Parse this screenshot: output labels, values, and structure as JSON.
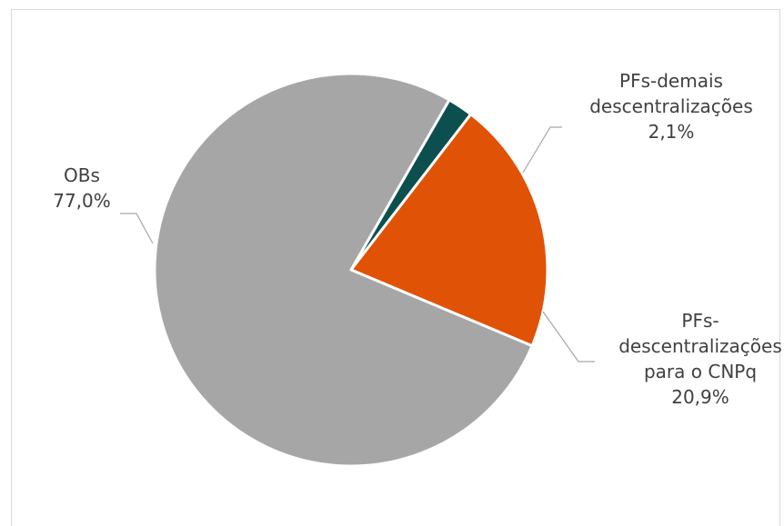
{
  "chart_data": {
    "type": "pie",
    "title": "",
    "slices": [
      {
        "name_lines": [
          "PFs-demais",
          "descentralizações"
        ],
        "value": 2.1,
        "label": "2,1%",
        "color": "#0d4f4f"
      },
      {
        "name_lines": [
          "PFs-",
          "descentralizações",
          "para o CNPq"
        ],
        "value": 20.9,
        "label": "20,9%",
        "color": "#e05206"
      },
      {
        "name_lines": [
          "OBs"
        ],
        "value": 77.0,
        "label": "77,0%",
        "color": "#a6a6a6"
      }
    ],
    "legend": "none",
    "start_angle_deg": 30,
    "direction": "clockwise"
  }
}
